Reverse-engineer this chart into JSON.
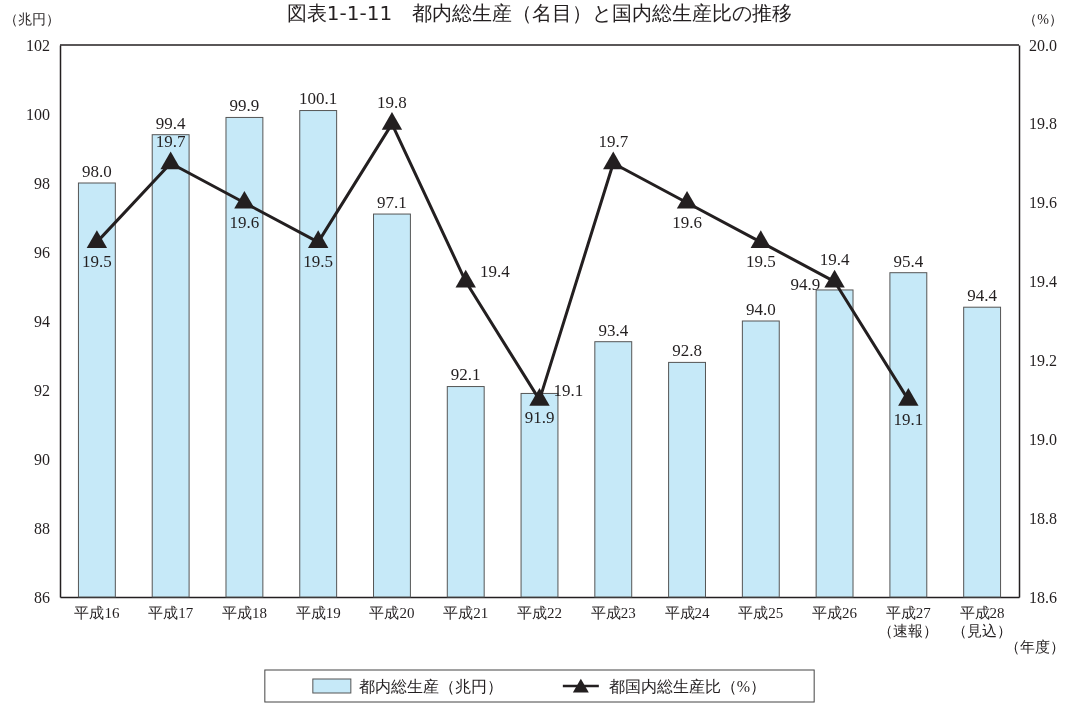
{
  "chart_data": {
    "type": "bar",
    "title": "図表1-1-11　都内総生産（名目）と国内総生産比の推移",
    "xlabel": "（年度）",
    "ylabel": "（兆円）",
    "y2label": "（%）",
    "categories": [
      "平成16",
      "平成17",
      "平成18",
      "平成19",
      "平成20",
      "平成21",
      "平成22",
      "平成23",
      "平成24",
      "平成25",
      "平成26",
      "平成27\n（速報）",
      "平成28\n（見込）"
    ],
    "series": [
      {
        "name": "都内総生産（兆円）",
        "color": "#c6e9f8",
        "values": [
          98.0,
          99.4,
          99.9,
          100.1,
          97.1,
          92.1,
          91.9,
          93.4,
          92.8,
          94.0,
          94.9,
          95.4,
          94.4
        ],
        "value_labels": [
          "98.0",
          "99.4",
          "99.9",
          "100.1",
          "97.1",
          "92.1",
          "91.9",
          "93.4",
          "92.8",
          "94.0",
          "94.9",
          "95.4",
          "94.4"
        ]
      },
      {
        "name": "都国内総生産比（%）",
        "type": "line",
        "axis": "y2",
        "color": "#231f20",
        "values": [
          19.5,
          19.7,
          19.6,
          19.5,
          19.8,
          19.4,
          19.1,
          19.7,
          19.6,
          19.5,
          19.4,
          19.1,
          null
        ],
        "value_labels": [
          "19.5",
          "19.7",
          "19.6",
          "19.5",
          "19.8",
          "19.4",
          "19.1",
          "19.7",
          "19.6",
          "19.5",
          "19.4",
          "19.1",
          null
        ]
      }
    ],
    "ylim": [
      86,
      102
    ],
    "yticks": [
      86,
      88,
      90,
      92,
      94,
      96,
      98,
      100,
      102
    ],
    "y2lim": [
      18.6,
      20.0
    ],
    "y2ticks": [
      18.6,
      18.8,
      {
        "value": 19.0,
        "label": "19.0"
      },
      19.2,
      19.4,
      19.6,
      19.8,
      {
        "value": 20.0,
        "label": "20.0"
      }
    ],
    "marker": "triangle",
    "legend": "bottom"
  }
}
